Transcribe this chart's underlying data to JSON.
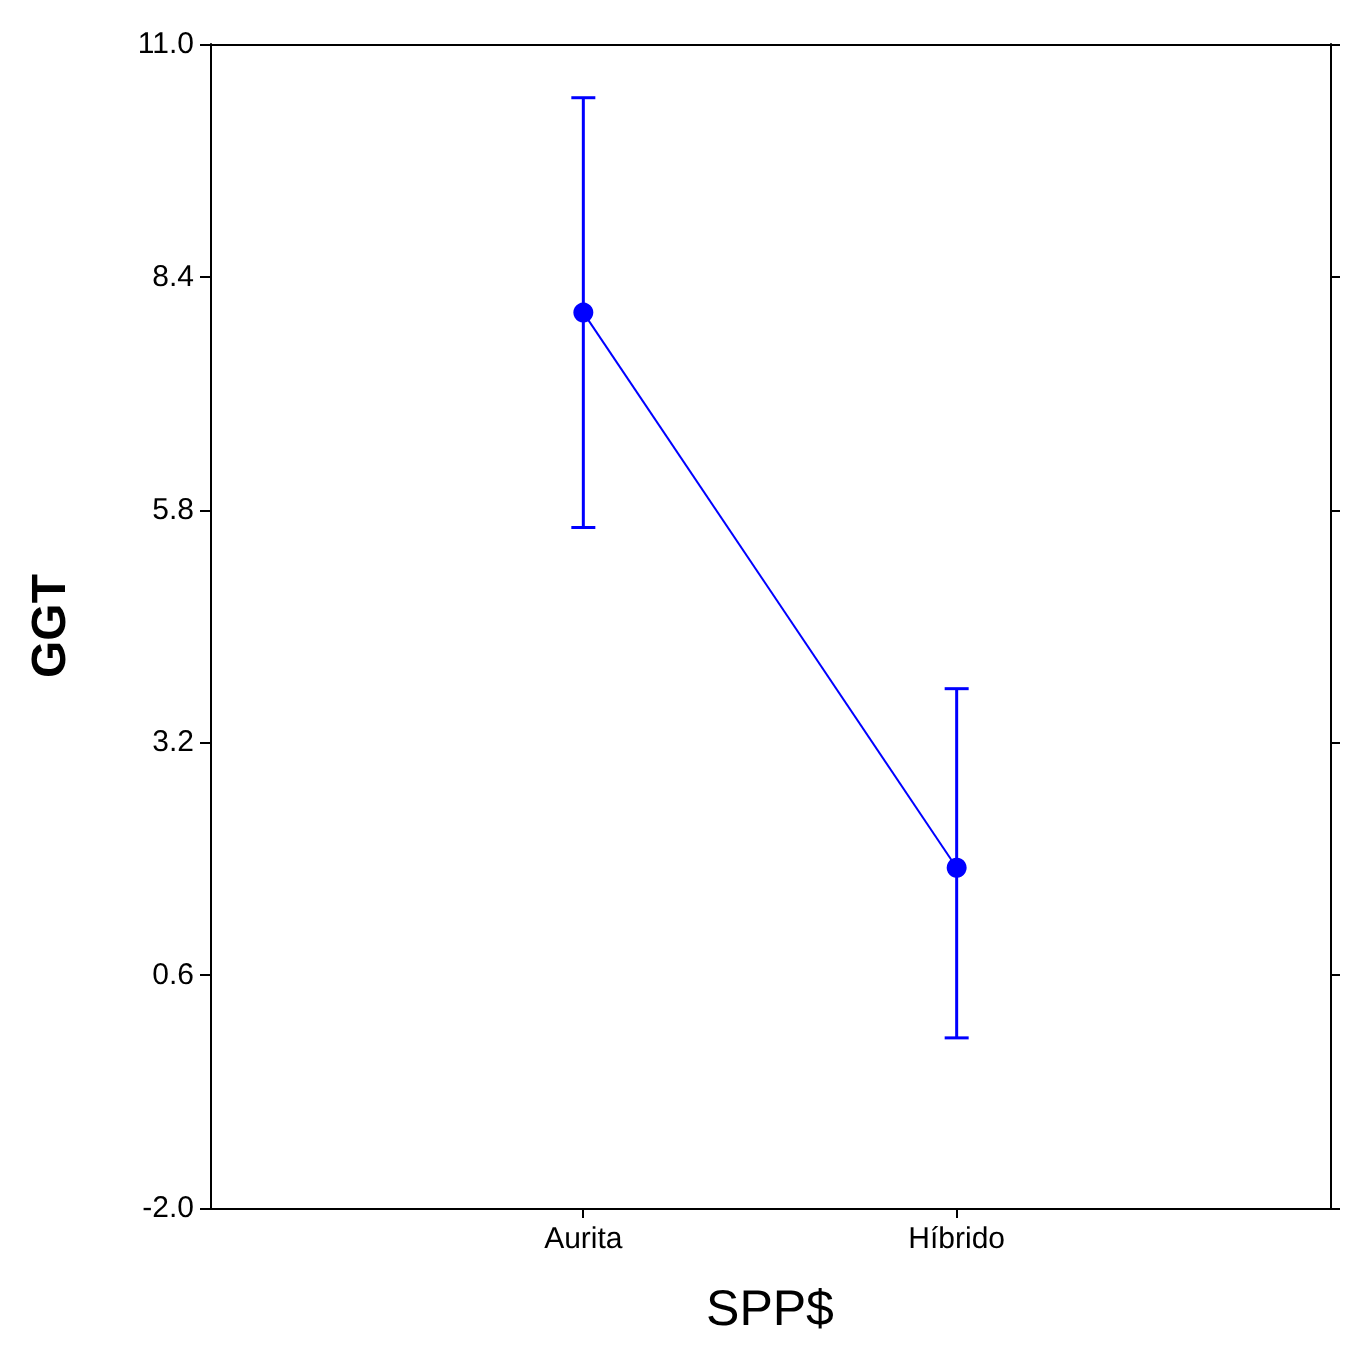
{
  "chart_data": {
    "type": "line",
    "xlabel": "SPP$",
    "ylabel": "GGT",
    "categories": [
      "Aurita",
      "Híbrido"
    ],
    "series": [
      {
        "color": "#0000ff",
        "values": [
          8.0,
          1.8
        ],
        "errors": [
          [
            5.6,
            10.4
          ],
          [
            -0.1,
            3.8
          ]
        ]
      }
    ],
    "ylim": [
      -2.0,
      11.0
    ],
    "yticks": [
      {
        "value": -2.0,
        "label": "-2.0"
      },
      0.6,
      3.2,
      5.8,
      8.4,
      {
        "value": 11.0,
        "label": "11.0"
      }
    ],
    "marker": "circle",
    "line_style": "solid",
    "grid": false
  }
}
